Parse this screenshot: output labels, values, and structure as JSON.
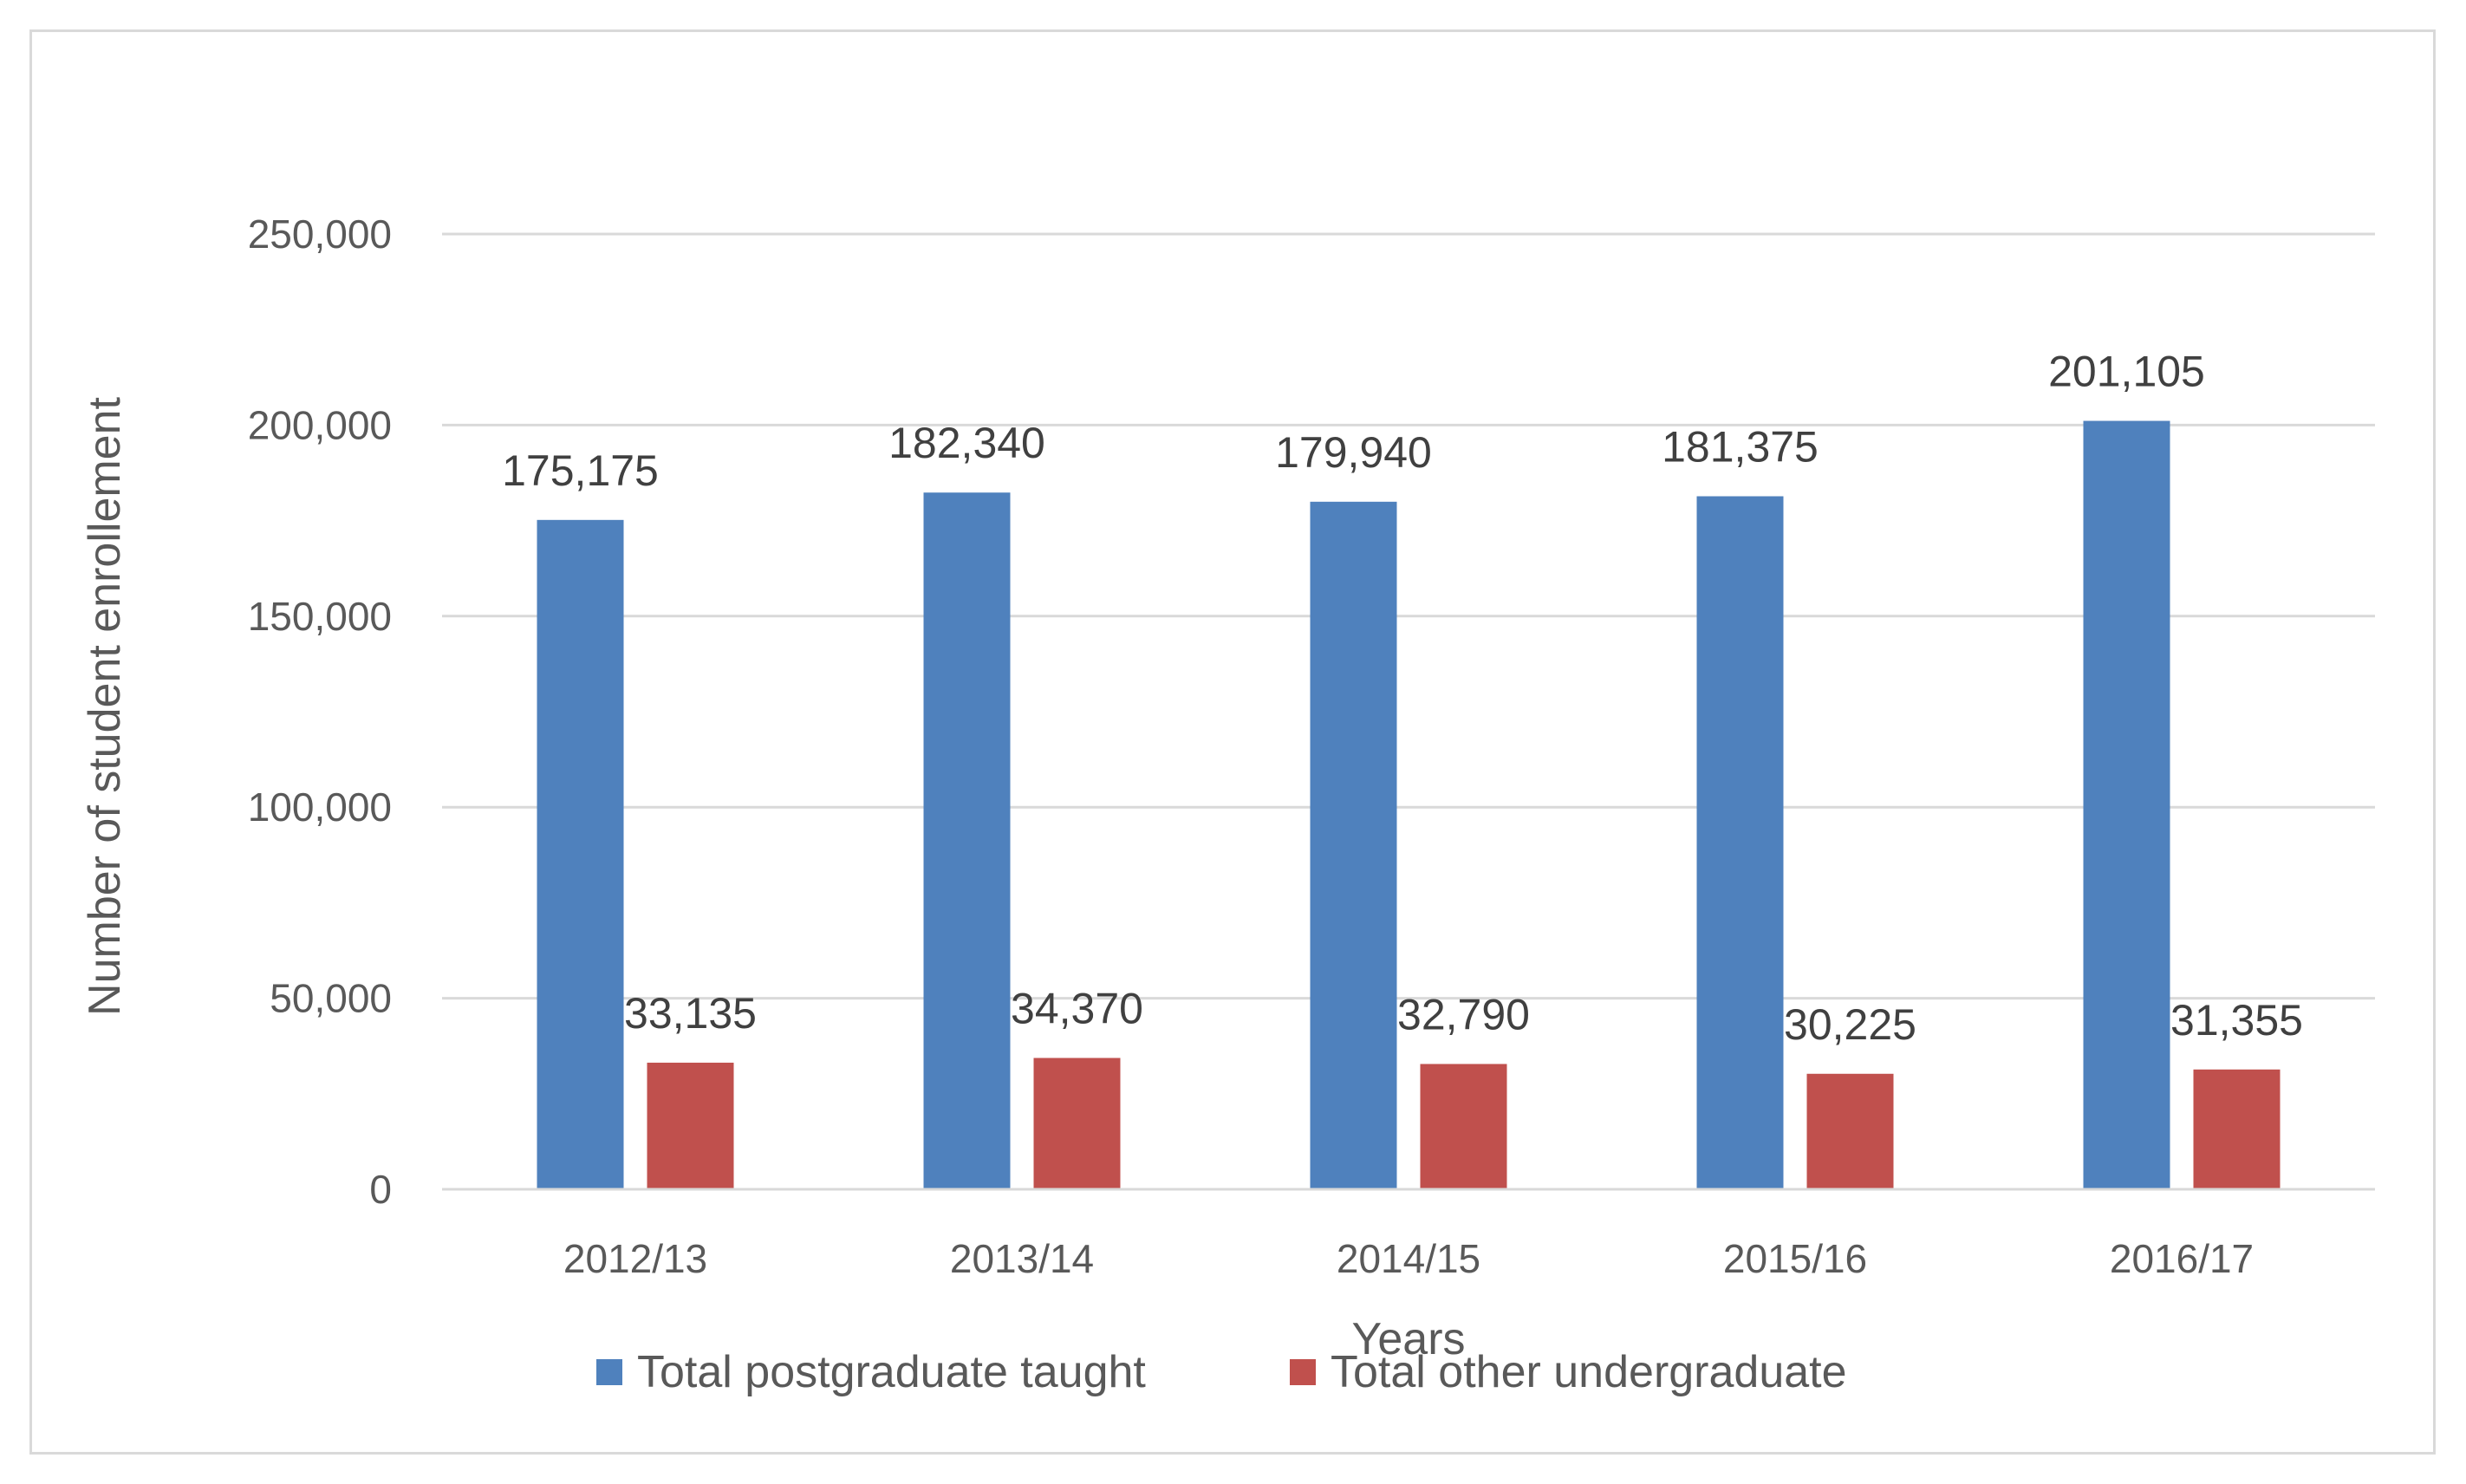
{
  "chart_data": {
    "type": "bar",
    "title": "",
    "xlabel": "Years",
    "ylabel": "Number of student enrollement",
    "categories": [
      "2012/13",
      "2013/14",
      "2014/15",
      "2015/16",
      "2016/17"
    ],
    "series": [
      {
        "name": "Total postgraduate taught",
        "color": "#4f81bd",
        "values": [
          175175,
          182340,
          179940,
          181375,
          201105
        ],
        "labels": [
          "175,175",
          "182,340",
          "179,940",
          "181,375",
          "201,105"
        ]
      },
      {
        "name": "Total other undergraduate",
        "color": "#c0504d",
        "values": [
          33135,
          34370,
          32790,
          30225,
          31355
        ],
        "labels": [
          "33,135",
          "34,370",
          "32,790",
          "30,225",
          "31,355"
        ]
      }
    ],
    "ylim": [
      0,
      250000
    ],
    "yticks": [
      0,
      50000,
      100000,
      150000,
      200000,
      250000
    ],
    "ytick_labels": [
      "0",
      "50,000",
      "100,000",
      "150,000",
      "200,000",
      "250,000"
    ],
    "grid": true,
    "gridline_color": "#d9d9d9",
    "legend_position": "bottom"
  }
}
